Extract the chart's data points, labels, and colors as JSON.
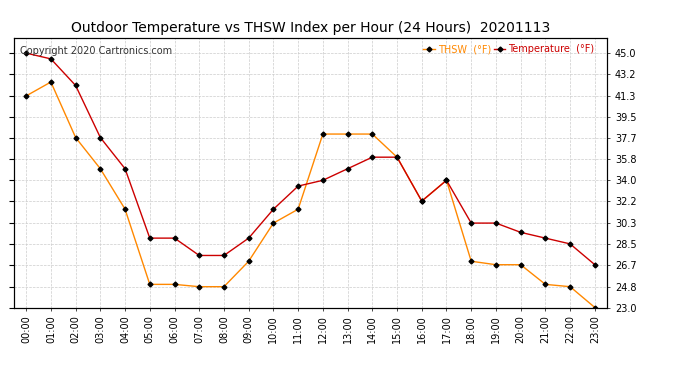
{
  "title": "Outdoor Temperature vs THSW Index per Hour (24 Hours)  20201113",
  "copyright_text": "Copyright 2020 Cartronics.com",
  "legend_thsw": "THSW  (°F)",
  "legend_temp": "Temperature  (°F)",
  "hours": [
    "00:00",
    "01:00",
    "02:00",
    "03:00",
    "04:00",
    "05:00",
    "06:00",
    "07:00",
    "08:00",
    "09:00",
    "10:00",
    "11:00",
    "12:00",
    "13:00",
    "14:00",
    "15:00",
    "16:00",
    "17:00",
    "18:00",
    "19:00",
    "20:00",
    "21:00",
    "22:00",
    "23:00"
  ],
  "temperature": [
    45.0,
    44.5,
    42.2,
    37.7,
    35.0,
    29.0,
    29.0,
    27.5,
    27.5,
    29.0,
    31.5,
    33.5,
    34.0,
    35.0,
    36.0,
    36.0,
    32.2,
    34.0,
    30.3,
    30.3,
    29.5,
    29.0,
    28.5,
    26.7
  ],
  "thsw": [
    41.3,
    42.5,
    37.7,
    35.0,
    31.5,
    25.0,
    25.0,
    24.8,
    24.8,
    27.0,
    30.3,
    31.5,
    38.0,
    38.0,
    38.0,
    36.0,
    32.2,
    34.0,
    27.0,
    26.7,
    26.7,
    25.0,
    24.8,
    23.0
  ],
  "temp_color": "#cc0000",
  "thsw_color": "#ff8800",
  "marker_color": "#000000",
  "ylim_min": 23.0,
  "ylim_max": 46.35,
  "yticks": [
    45.0,
    43.2,
    41.3,
    39.5,
    37.7,
    35.8,
    34.0,
    32.2,
    30.3,
    28.5,
    26.7,
    24.8,
    23.0
  ],
  "background_color": "#ffffff",
  "grid_color": "#cccccc",
  "title_fontsize": 10,
  "tick_fontsize": 7,
  "copyright_fontsize": 7
}
